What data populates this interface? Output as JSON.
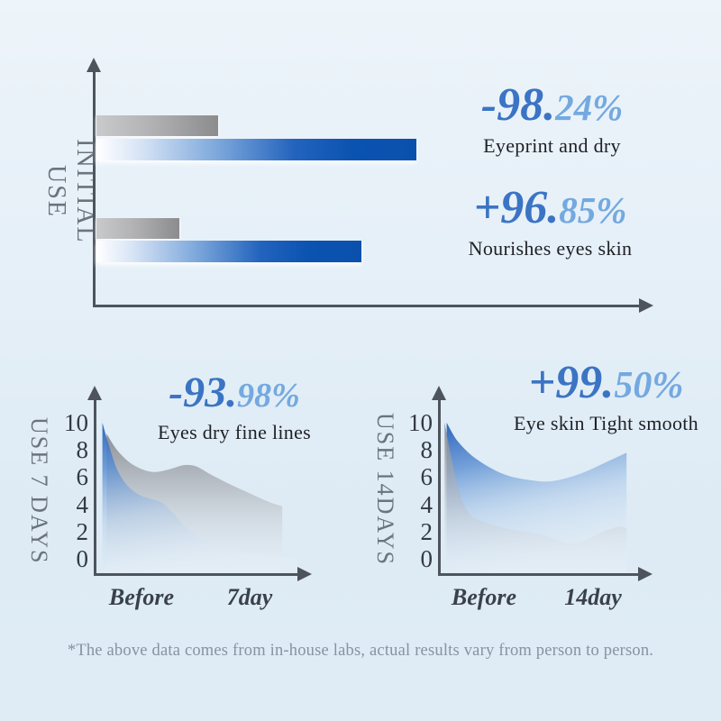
{
  "footnote": "*The above data comes from in-house labs, actual results vary from person to person.",
  "colors": {
    "background_top": "#edf4fa",
    "background_bottom": "#dfecf6",
    "axis": "#4d545c",
    "stat_number_main": "#3b74c4",
    "stat_number_fraction": "#74a9e0",
    "caption_text": "#1e2126",
    "side_label_text": "#6b737e",
    "bar_blue_deep": "#0b53b0",
    "bar_gray": "#8b8c8e",
    "footnote_text": "#8793a0"
  },
  "initial_use": {
    "side_label": "INITIAL USE",
    "stats": [
      {
        "main": "-98.",
        "frac": "24%",
        "caption": "Eyeprint and dry"
      },
      {
        "main": "+96.",
        "frac": "85%",
        "caption": "Nourishes eyes skin"
      }
    ]
  },
  "use_7_days": {
    "side_label": "USE 7 DAYS",
    "stat": {
      "main": "-93.",
      "frac": "98%",
      "caption": "Eyes dry fine lines"
    },
    "x_left": "Before",
    "x_right": "7day"
  },
  "use_14_days": {
    "side_label": "USE 14DAYS",
    "stat": {
      "main": "+99.",
      "frac": "50%",
      "caption": "Eye skin Tight smooth"
    },
    "x_left": "Before",
    "x_right": "14day"
  },
  "chart_data": [
    {
      "type": "bar",
      "orientation": "horizontal",
      "title": "INITIAL USE",
      "categories": [
        "Eyeprint and dry",
        "Nourishes eyes skin"
      ],
      "series": [
        {
          "name": "before",
          "color": "gray",
          "values": [
            22,
            15
          ]
        },
        {
          "name": "after",
          "color": "blue",
          "values": [
            58,
            48
          ]
        }
      ],
      "xlim": [
        0,
        100
      ],
      "note": "bars are unlabeled in source; values estimated as percent of axis length"
    },
    {
      "type": "area",
      "title": "USE 7 DAYS",
      "ylim": [
        0,
        10
      ],
      "yticks": [
        "10",
        "8",
        "6",
        "4",
        "2",
        "0"
      ],
      "x_labels": [
        "Before",
        "7day"
      ],
      "annotation": "-93.98% Eyes dry fine lines",
      "series": [
        {
          "name": "before (gray)",
          "palette": "gray",
          "points": [
            [
              0.04,
              9.2
            ],
            [
              0.09,
              8.0
            ],
            [
              0.15,
              7.1
            ],
            [
              0.21,
              6.6
            ],
            [
              0.27,
              6.4
            ],
            [
              0.34,
              6.6
            ],
            [
              0.41,
              6.9
            ],
            [
              0.47,
              6.8
            ],
            [
              0.54,
              6.2
            ],
            [
              0.63,
              5.5
            ],
            [
              0.73,
              4.8
            ],
            [
              0.82,
              4.2
            ],
            [
              0.88,
              3.9
            ]
          ]
        },
        {
          "name": "after (blue)",
          "palette": "blue",
          "points": [
            [
              0.02,
              10
            ],
            [
              0.05,
              8.4
            ],
            [
              0.09,
              6.6
            ],
            [
              0.14,
              5.4
            ],
            [
              0.2,
              4.7
            ],
            [
              0.26,
              4.4
            ],
            [
              0.31,
              4.1
            ],
            [
              0.37,
              3.2
            ],
            [
              0.43,
              2.2
            ],
            [
              0.5,
              1.5
            ],
            [
              0.6,
              0.9
            ],
            [
              0.72,
              0.45
            ],
            [
              0.85,
              0.2
            ],
            [
              0.95,
              0.1
            ]
          ]
        }
      ]
    },
    {
      "type": "area",
      "title": "USE 14DAYS",
      "ylim": [
        0,
        10
      ],
      "yticks": [
        "10",
        "8",
        "6",
        "4",
        "2",
        "0"
      ],
      "x_labels": [
        "Before",
        "14day"
      ],
      "annotation": "+99.50% Eye skin Tight smooth",
      "series": [
        {
          "name": "after (blue)",
          "palette": "blue",
          "points": [
            [
              0.02,
              10
            ],
            [
              0.07,
              8.7
            ],
            [
              0.14,
              7.6
            ],
            [
              0.23,
              6.7
            ],
            [
              0.32,
              6.1
            ],
            [
              0.42,
              5.8
            ],
            [
              0.5,
              5.7
            ],
            [
              0.58,
              5.9
            ],
            [
              0.68,
              6.4
            ],
            [
              0.78,
              7.1
            ],
            [
              0.88,
              7.8
            ]
          ]
        },
        {
          "name": "before (gray)",
          "palette": "gray",
          "points": [
            [
              0.01,
              10
            ],
            [
              0.04,
              7.6
            ],
            [
              0.08,
              4.9
            ],
            [
              0.13,
              3.3
            ],
            [
              0.19,
              2.8
            ],
            [
              0.27,
              2.4
            ],
            [
              0.37,
              2.1
            ],
            [
              0.46,
              1.9
            ],
            [
              0.54,
              1.5
            ],
            [
              0.61,
              1.2
            ],
            [
              0.68,
              1.4
            ],
            [
              0.76,
              2.0
            ],
            [
              0.84,
              2.4
            ],
            [
              0.88,
              2.3
            ]
          ]
        }
      ]
    }
  ]
}
